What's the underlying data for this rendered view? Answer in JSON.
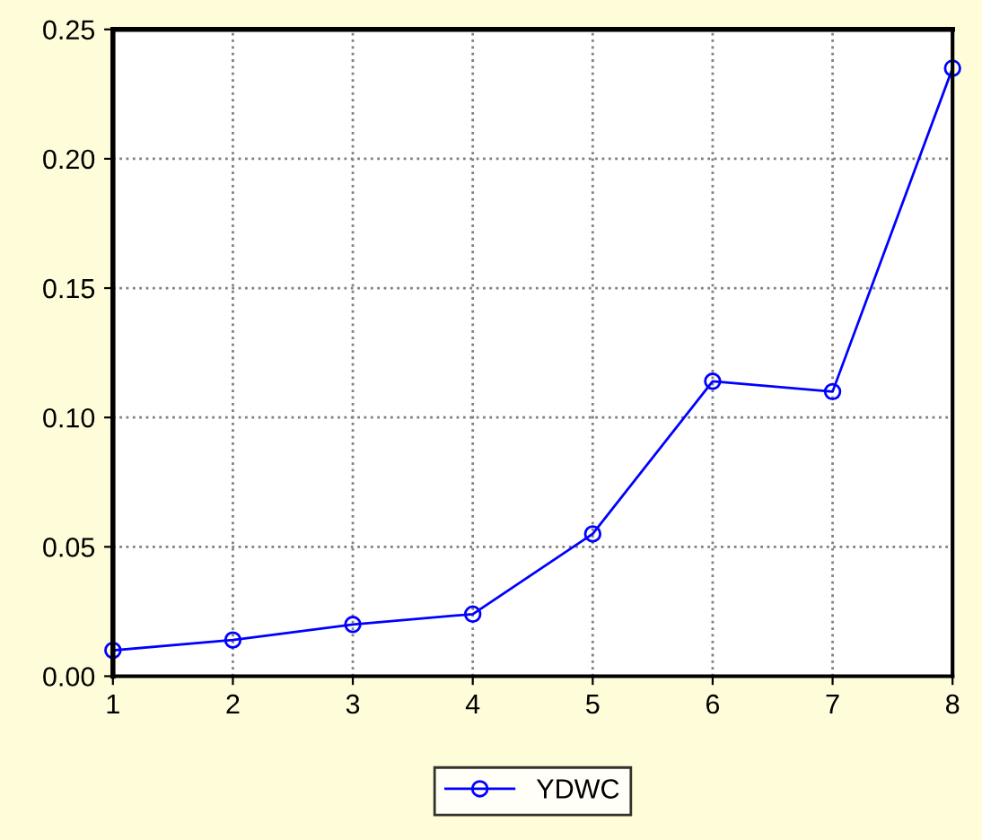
{
  "chart_data": {
    "type": "line",
    "x": [
      1,
      2,
      3,
      4,
      5,
      6,
      7,
      8
    ],
    "series": [
      {
        "name": "YDWC",
        "color": "#0000ff",
        "values": [
          0.01,
          0.014,
          0.02,
          0.024,
          0.055,
          0.114,
          0.11,
          0.235
        ]
      }
    ],
    "xlim": [
      1,
      8
    ],
    "xticks": [
      1,
      2,
      3,
      4,
      5,
      6,
      7,
      8
    ],
    "ylim": [
      0,
      0.25
    ],
    "yticks": [
      {
        "value": 0,
        "label": "0.00"
      },
      {
        "value": 0.05,
        "label": "0.05"
      },
      {
        "value": 0.1,
        "label": "0.10"
      },
      {
        "value": 0.15,
        "label": "0.15"
      },
      {
        "value": 0.2,
        "label": "0.20"
      },
      {
        "value": 0.25,
        "label": "0.25"
      }
    ],
    "grid": true,
    "legend": "bottom",
    "marker": "circle",
    "line_style": "solid"
  }
}
